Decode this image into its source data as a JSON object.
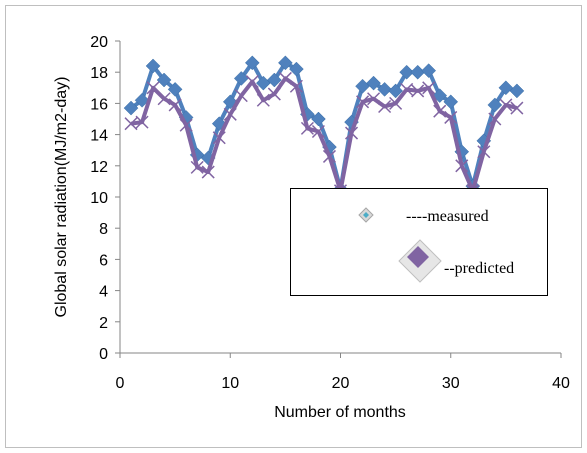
{
  "chart_data": {
    "type": "line",
    "xlabel": "Number of months",
    "ylabel": "Global solar radiation(MJ/m2-day)",
    "xlim": [
      0,
      40
    ],
    "ylim": [
      0,
      20
    ],
    "xticks": [
      "0",
      "10",
      "20",
      "30",
      "40"
    ],
    "yticks": [
      "0",
      "2",
      "4",
      "6",
      "8",
      "10",
      "12",
      "14",
      "16",
      "18",
      "20"
    ],
    "grid": false,
    "legend_position": "right-center",
    "x": [
      1,
      2,
      3,
      4,
      5,
      6,
      7,
      8,
      9,
      10,
      11,
      12,
      13,
      14,
      15,
      16,
      17,
      18,
      19,
      20,
      21,
      22,
      23,
      24,
      25,
      26,
      27,
      28,
      29,
      30,
      31,
      32,
      33,
      34,
      35,
      36
    ],
    "series": [
      {
        "name": "----measured",
        "color": "#4F81BD",
        "marker": "diamond",
        "values": [
          15.7,
          16.2,
          18.4,
          17.5,
          16.9,
          15.1,
          12.7,
          12.5,
          14.7,
          16.1,
          17.6,
          18.6,
          17.3,
          17.5,
          18.6,
          18.2,
          15.3,
          15.0,
          13.2,
          10.5,
          14.8,
          17.1,
          17.3,
          16.9,
          16.8,
          18.0,
          18.0,
          18.1,
          16.5,
          16.1,
          12.9,
          10.7,
          13.6,
          15.9,
          17.0,
          16.8
        ]
      },
      {
        "name": "--predicted",
        "color": "#8064A2",
        "marker": "x",
        "values": [
          14.7,
          14.8,
          17.0,
          16.3,
          15.9,
          14.6,
          11.9,
          11.6,
          13.8,
          15.3,
          16.5,
          17.4,
          16.2,
          16.6,
          17.6,
          17.1,
          14.4,
          14.2,
          12.6,
          10.4,
          14.1,
          16.1,
          16.3,
          15.8,
          16.0,
          16.9,
          16.8,
          17.0,
          15.5,
          15.1,
          12.0,
          10.4,
          12.9,
          15.0,
          15.9,
          15.7
        ]
      }
    ]
  }
}
